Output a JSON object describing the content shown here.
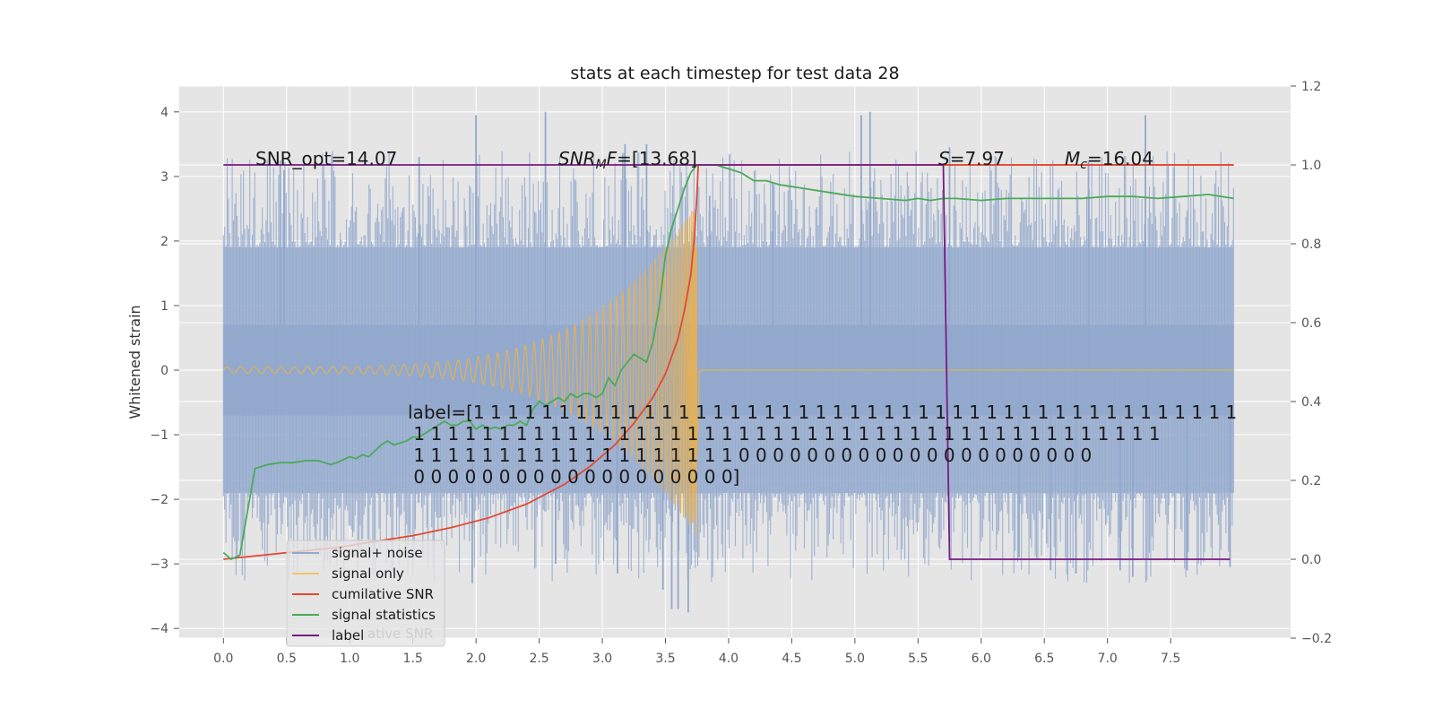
{
  "chart_data": {
    "type": "line",
    "title": "stats at each timestep for test data 28",
    "ylabel": "Whitened strain",
    "xlabel": "",
    "xlim": [
      -0.35,
      8.45
    ],
    "ylim": [
      -4.15,
      4.4
    ],
    "y2lim": [
      -0.2,
      1.2
    ],
    "grid": true,
    "legend_position": "lower-left",
    "x_ticks": [
      "0.0",
      "0.5",
      "1.0",
      "1.5",
      "2.0",
      "2.5",
      "3.0",
      "3.5",
      "4.0",
      "4.5",
      "5.0",
      "5.5",
      "6.0",
      "6.5",
      "7.0",
      "7.5"
    ],
    "y_ticks": [
      "−4",
      "−3",
      "−2",
      "−1",
      "0",
      "1",
      "2",
      "3",
      "4"
    ],
    "y2_ticks": [
      "−0.2",
      "0.0",
      "0.2",
      "0.4",
      "0.6",
      "0.8",
      "1.0",
      "1.2"
    ],
    "annotations": {
      "snr_opt": "SNR_opt=14.07",
      "snr_mf": "SNR",
      "snr_mf_sub": "M",
      "snr_mf_f": "F",
      "snr_mf_val": "=[13.68]",
      "s_sym": "S",
      "s_val": "=7.97",
      "mc_sym": "M",
      "mc_sub": "c",
      "mc_val": "=16.04",
      "label_lines": [
        "label=[1 1 1 1 1 1 1 1 1 1 1 1 1 1 1 1 1 1 1 1 1 1 1 1 1 1 1 1 1 1 1 1 1 1 1 1 1 1 1 1 1 1 1 1 1",
        " 1 1 1 1 1 1 1 1 1 1 1 1 1 1 1 1 1 1 1 1 1 1 1 1 1 1 1 1 1 1 1 1 1 1 1 1 1 1 1 1 1 1 1 1",
        " 1 1 1 1 1 1 1 1 1 1 1 1 1 1 1 1 1 1 1 0 0 0 0 0 0 0 0 0 0 0 0 0 0 0 0 0 0 0 0 0",
        " 0 0 0 0 0 0 0 0 0 0 0 0 0 0 0 0 0 0 0]"
      ]
    },
    "legend": {
      "entries": [
        {
          "label": "signal+ noise",
          "color": "#92a8cd"
        },
        {
          "label": "signal only",
          "color": "#f4c36a"
        },
        {
          "label": "cumilative SNR",
          "color": "#e24a33"
        },
        {
          "label": "signal statistics",
          "color": "#4aaa5a"
        },
        {
          "label": "label",
          "color": "#7a1a85"
        }
      ],
      "ghost_text": "ative SNR"
    },
    "series": [
      {
        "name": "signal+ noise",
        "axis": "left",
        "color": "#92a8cd",
        "t_start": 0.0,
        "t_end": 8.0,
        "band_inner": [
          -0.7,
          0.7
        ],
        "band_outer": [
          -1.9,
          1.9
        ],
        "spikes": [
          {
            "x": 0.45,
            "y": 3.25
          },
          {
            "x": 0.48,
            "y": 3.1
          },
          {
            "x": 1.55,
            "y": 3.3
          },
          {
            "x": 2.0,
            "y": 3.95
          },
          {
            "x": 2.55,
            "y": 4.0
          },
          {
            "x": 3.18,
            "y": 3.5
          },
          {
            "x": 3.35,
            "y": 3.5
          },
          {
            "x": 5.05,
            "y": 3.95
          },
          {
            "x": 5.12,
            "y": 4.0
          },
          {
            "x": 5.75,
            "y": 3.45
          },
          {
            "x": 6.85,
            "y": 3.25
          },
          {
            "x": 7.3,
            "y": 3.95
          },
          {
            "x": 1.97,
            "y": -3.3
          },
          {
            "x": 2.63,
            "y": -3.0
          },
          {
            "x": 3.12,
            "y": -3.15
          },
          {
            "x": 3.55,
            "y": -3.7
          },
          {
            "x": 3.6,
            "y": -3.7
          },
          {
            "x": 3.68,
            "y": -3.75
          },
          {
            "x": 3.48,
            "y": -3.4
          },
          {
            "x": 6.55,
            "y": -3.1
          },
          {
            "x": 6.75,
            "y": -3.15
          },
          {
            "x": 7.1,
            "y": -3.1
          },
          {
            "x": 7.2,
            "y": -3.2
          },
          {
            "x": 7.63,
            "y": -3.1
          },
          {
            "x": 7.97,
            "y": -3.05
          },
          {
            "x": 6.3,
            "y": -2.9
          },
          {
            "x": 3.85,
            "y": 2.7
          },
          {
            "x": 4.35,
            "y": 2.9
          }
        ]
      },
      {
        "name": "signal only",
        "axis": "left",
        "color": "#e8b050",
        "t_start": 0.0,
        "t_merger": 3.75,
        "t_end": 8.0,
        "amplitude_start": 0.05,
        "amplitude_peak": 2.6
      },
      {
        "name": "cumilative SNR",
        "axis": "right",
        "color": "#e24a33",
        "x": [
          0.0,
          0.3,
          0.6,
          0.9,
          1.2,
          1.5,
          1.8,
          2.1,
          2.4,
          2.7,
          2.9,
          3.1,
          3.25,
          3.4,
          3.5,
          3.6,
          3.65,
          3.7,
          3.73,
          3.75,
          3.76,
          4.0,
          5.0,
          6.0,
          7.0,
          8.0
        ],
        "y": [
          0.0,
          0.01,
          0.02,
          0.03,
          0.045,
          0.06,
          0.08,
          0.105,
          0.14,
          0.19,
          0.235,
          0.29,
          0.345,
          0.41,
          0.47,
          0.56,
          0.63,
          0.72,
          0.82,
          0.93,
          1.0,
          1.0,
          1.0,
          1.0,
          1.0,
          1.0
        ]
      },
      {
        "name": "signal statistics",
        "axis": "right",
        "color": "#4aaa5a",
        "x": [
          0.0,
          0.06,
          0.13,
          0.25,
          0.35,
          0.45,
          0.55,
          0.65,
          0.75,
          0.8,
          0.85,
          0.9,
          1.0,
          1.05,
          1.1,
          1.15,
          1.25,
          1.3,
          1.35,
          1.45,
          1.5,
          1.55,
          1.6,
          1.65,
          1.7,
          1.75,
          1.8,
          1.85,
          1.9,
          1.95,
          2.0,
          2.05,
          2.1,
          2.15,
          2.2,
          2.25,
          2.3,
          2.35,
          2.4,
          2.45,
          2.5,
          2.55,
          2.6,
          2.65,
          2.7,
          2.75,
          2.8,
          2.85,
          2.9,
          2.95,
          3.0,
          3.05,
          3.1,
          3.15,
          3.2,
          3.25,
          3.3,
          3.35,
          3.4,
          3.45,
          3.5,
          3.55,
          3.6,
          3.65,
          3.7,
          3.75,
          3.8,
          3.85,
          3.9,
          4.0,
          4.1,
          4.2,
          4.3,
          4.4,
          4.5,
          4.6,
          4.8,
          5.0,
          5.2,
          5.4,
          5.5,
          5.6,
          5.7,
          5.8,
          6.0,
          6.2,
          6.4,
          6.6,
          6.8,
          7.0,
          7.2,
          7.4,
          7.6,
          7.8,
          8.0
        ],
        "y": [
          0.017,
          0.0,
          0.01,
          0.23,
          0.24,
          0.245,
          0.245,
          0.25,
          0.25,
          0.245,
          0.24,
          0.245,
          0.26,
          0.255,
          0.265,
          0.26,
          0.29,
          0.3,
          0.29,
          0.3,
          0.31,
          0.31,
          0.32,
          0.33,
          0.34,
          0.35,
          0.34,
          0.34,
          0.35,
          0.35,
          0.33,
          0.34,
          0.33,
          0.335,
          0.33,
          0.34,
          0.34,
          0.35,
          0.34,
          0.38,
          0.4,
          0.39,
          0.4,
          0.41,
          0.4,
          0.42,
          0.41,
          0.42,
          0.42,
          0.41,
          0.42,
          0.46,
          0.44,
          0.48,
          0.5,
          0.52,
          0.51,
          0.5,
          0.55,
          0.64,
          0.77,
          0.84,
          0.89,
          0.94,
          0.98,
          1.0,
          1.0,
          1.0,
          1.0,
          0.99,
          0.98,
          0.96,
          0.96,
          0.95,
          0.945,
          0.94,
          0.93,
          0.92,
          0.915,
          0.91,
          0.915,
          0.91,
          0.915,
          0.915,
          0.91,
          0.915,
          0.915,
          0.915,
          0.915,
          0.92,
          0.92,
          0.915,
          0.92,
          0.925,
          0.915
        ]
      },
      {
        "name": "label",
        "axis": "right",
        "color": "#7a1a85",
        "x": [
          0.0,
          5.7,
          5.75,
          7.97
        ],
        "y": [
          1.0,
          1.0,
          0.0,
          0.0
        ]
      },
      {
        "name": "cumilative SNR (flat)",
        "axis": "right",
        "color": "#e24a33",
        "x": [
          5.7,
          8.0
        ],
        "y": [
          1.0,
          1.0
        ]
      }
    ]
  }
}
